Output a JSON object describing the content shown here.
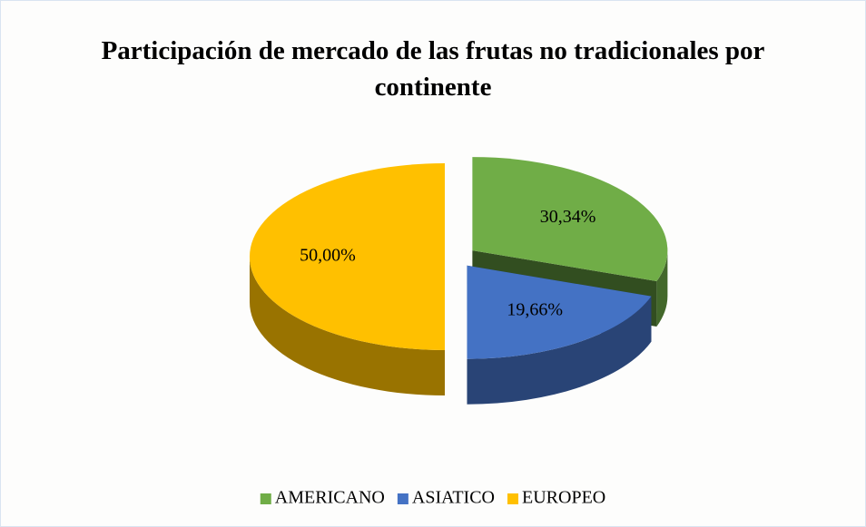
{
  "chart_data": {
    "type": "pie",
    "title": "Participación de mercado de las frutas no tradicionales por continente",
    "categories": [
      "AMERICANO",
      "ASIATICO",
      "EUROPEO"
    ],
    "values": [
      30.34,
      19.66,
      50.0
    ],
    "value_labels": [
      "30,34%",
      "19,66%",
      "50,00%"
    ],
    "colors": [
      "#70ad47",
      "#4472c4",
      "#ffc000"
    ],
    "legend": "bottom"
  }
}
